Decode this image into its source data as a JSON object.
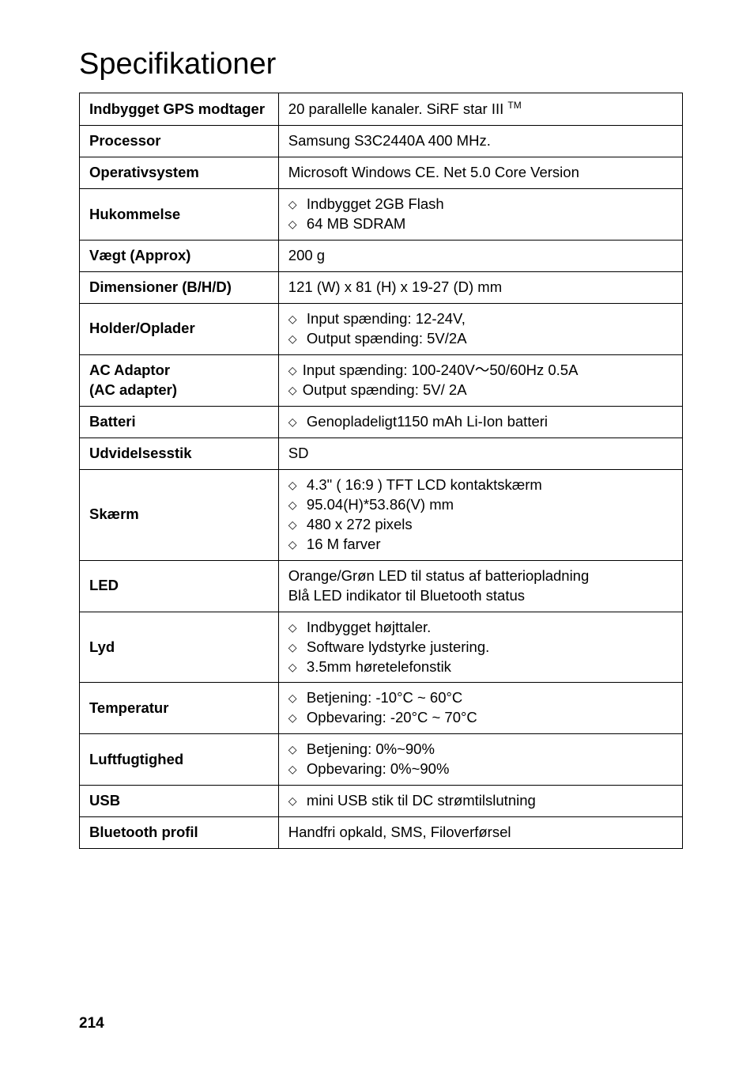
{
  "title": "Specifikationer",
  "page_number": "214",
  "rows": [
    {
      "label": "Indbygget GPS modtager",
      "value_html": "20 parallelle kanaler. SiRF star III <sup>TM</sup>"
    },
    {
      "label": "Processor",
      "value": "Samsung S3C2440A 400 MHz."
    },
    {
      "label": "Operativsystem",
      "value": "Microsoft Windows CE. Net 5.0 Core Version"
    },
    {
      "label": "Hukommelse",
      "bullets": [
        "Indbygget 2GB Flash",
        "64 MB SDRAM"
      ]
    },
    {
      "label": "Vægt (Approx)",
      "value": "200 g"
    },
    {
      "label": "Dimensioner (B/H/D)",
      "value": "121 (W) x 81 (H) x 19-27 (D) mm"
    },
    {
      "label": "Holder/Oplader",
      "bullets": [
        "Input spænding:  12-24V,",
        "Output spænding: 5V/2A"
      ]
    },
    {
      "label": "AC Adaptor\n(AC adapter)",
      "bullets_tight": [
        "Input spænding: 100-240V～50/60Hz 0.5A",
        "Output spænding: 5V/ 2A"
      ]
    },
    {
      "label": "Batteri",
      "bullets": [
        "Genopladeligt1150 mAh Li-Ion batteri"
      ]
    },
    {
      "label": "Udvidelsesstik",
      "value": "SD"
    },
    {
      "label": "Skærm",
      "bullets": [
        "4.3\"  ( 16:9 ) TFT LCD kontaktskærm",
        "95.04(H)*53.86(V) mm",
        "480 x 272 pixels",
        "16 M farver"
      ]
    },
    {
      "label": "LED",
      "value": "Orange/Grøn LED til status af batteriopladning\nBlå LED indikator til Bluetooth status"
    },
    {
      "label": "Lyd",
      "bullets": [
        "Indbygget højttaler.",
        "Software lydstyrke justering.",
        "3.5mm høretelefonstik"
      ]
    },
    {
      "label": "Temperatur",
      "bullets": [
        "Betjening:     -10°C ~ 60°C",
        "Opbevaring: -20°C ~ 70°C"
      ]
    },
    {
      "label": "Luftfugtighed",
      "bullets": [
        "Betjening: 0%~90%",
        "Opbevaring: 0%~90%"
      ]
    },
    {
      "label": "USB",
      "bullets": [
        "mini USB stik til DC strømtilslutning"
      ]
    },
    {
      "label": "Bluetooth profil",
      "value": "Handfri opkald, SMS, Filoverførsel"
    }
  ]
}
